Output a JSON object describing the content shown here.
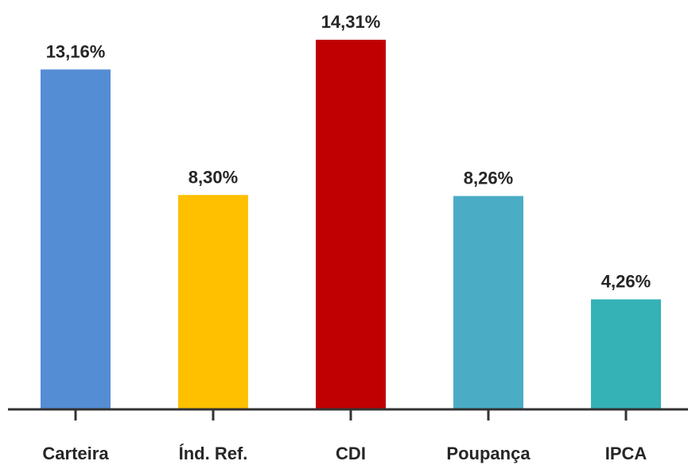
{
  "chart_data": {
    "type": "bar",
    "title": "",
    "xlabel": "",
    "ylabel": "",
    "categories": [
      "Carteira",
      "Índ. Ref.",
      "CDI",
      "Poupança",
      "IPCA"
    ],
    "values": [
      13.16,
      8.3,
      14.31,
      8.26,
      4.26
    ],
    "value_labels": [
      "13,16%",
      "8,30%",
      "14,31%",
      "8,26%",
      "4,26%"
    ],
    "colors": [
      "#548DD4",
      "#FFC000",
      "#C00000",
      "#4BACC6",
      "#35B2B6"
    ],
    "ylim": [
      0,
      14.31
    ],
    "grid": false,
    "legend": "none"
  }
}
